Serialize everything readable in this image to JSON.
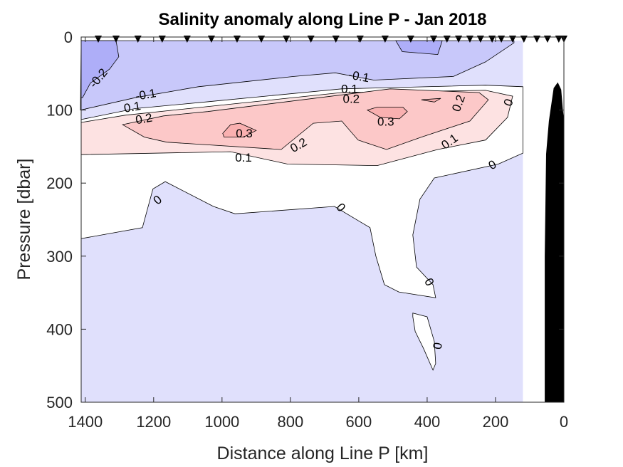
{
  "chart_data": {
    "type": "contour",
    "title": "Salinity anomaly along Line P - Jan 2018",
    "xlabel": "Distance along Line P [km]",
    "ylabel": "Pressure [dbar]",
    "xlim": [
      1412,
      0
    ],
    "ylim": [
      500,
      0
    ],
    "x_reversed": true,
    "y_reversed": true,
    "xticks": [
      1400,
      1200,
      1000,
      800,
      600,
      400,
      200,
      0
    ],
    "yticks": [
      0,
      100,
      200,
      300,
      400,
      500
    ],
    "data_extent_km": [
      1412,
      120
    ],
    "colors": {
      "lt_-0.2": "#aeaef8",
      "-0.2_-0.1": "#c8c8fa",
      "-0.1_0": "#e0e0fc",
      "0_0.1": "#ffffff",
      "0.1_0.2": "#fde2e2",
      "0.2_0.3": "#fcc8c8",
      "gt_0.3": "#f9b0b0",
      "bathymetry": "#000000"
    },
    "filled_regions": [
      {
        "level": "-0.1_0",
        "points": [
          [
            1412,
            5
          ],
          [
            120,
            5
          ],
          [
            120,
            500
          ],
          [
            1412,
            500
          ]
        ]
      },
      {
        "level": "-0.2_-0.1",
        "points": [
          [
            1412,
            5
          ],
          [
            146,
            5
          ],
          [
            146,
            8
          ],
          [
            229,
            34
          ],
          [
            323,
            54
          ],
          [
            556,
            59
          ],
          [
            669,
            49
          ],
          [
            790,
            54
          ],
          [
            1069,
            68
          ],
          [
            1254,
            83
          ],
          [
            1414,
            100
          ]
        ]
      },
      {
        "level": "lt_-0.2",
        "points": [
          [
            1412,
            5
          ],
          [
            1310,
            5
          ],
          [
            1302,
            27
          ],
          [
            1329,
            44
          ],
          [
            1385,
            63
          ],
          [
            1408,
            83
          ],
          [
            1412,
            83
          ]
        ]
      },
      {
        "level": "lt_-0.2",
        "points": [
          [
            492,
            5
          ],
          [
            473,
            20
          ],
          [
            369,
            24
          ],
          [
            356,
            5
          ]
        ]
      },
      {
        "level": "0_0.1",
        "points": [
          [
            1412,
            113
          ],
          [
            1254,
            98
          ],
          [
            1050,
            89
          ],
          [
            650,
            71
          ],
          [
            229,
            66
          ],
          [
            120,
            68
          ],
          [
            120,
            159
          ],
          [
            192,
            174
          ],
          [
            379,
            193
          ],
          [
            421,
            222
          ],
          [
            442,
            271
          ],
          [
            431,
            315
          ],
          [
            383,
            339
          ],
          [
            375,
            357
          ],
          [
            483,
            349
          ],
          [
            525,
            339
          ],
          [
            550,
            300
          ],
          [
            567,
            261
          ],
          [
            671,
            232
          ],
          [
            962,
            242
          ],
          [
            1025,
            232
          ],
          [
            1166,
            198
          ],
          [
            1202,
            208
          ],
          [
            1233,
            261
          ],
          [
            1412,
            276
          ]
        ]
      },
      {
        "level": "0_0.1",
        "points": [
          [
            442,
            378
          ],
          [
            400,
            383
          ],
          [
            379,
            417
          ],
          [
            375,
            447
          ],
          [
            383,
            456
          ],
          [
            410,
            427
          ],
          [
            435,
            403
          ],
          [
            442,
            383
          ]
        ]
      },
      {
        "level": "0.1_0.2",
        "points": [
          [
            1412,
            117
          ],
          [
            1283,
            107
          ],
          [
            650,
            76
          ],
          [
            229,
            73
          ],
          [
            150,
            81
          ],
          [
            165,
            110
          ],
          [
            229,
            141
          ],
          [
            369,
            154
          ],
          [
            546,
            176
          ],
          [
            808,
            174
          ],
          [
            975,
            157
          ],
          [
            1412,
            161
          ]
        ]
      },
      {
        "level": "0.2_0.3",
        "points": [
          [
            1291,
            120
          ],
          [
            1171,
            108
          ],
          [
            1042,
            102
          ],
          [
            508,
            71
          ],
          [
            248,
            76
          ],
          [
            221,
            86
          ],
          [
            275,
            115
          ],
          [
            417,
            137
          ],
          [
            519,
            154
          ],
          [
            602,
            141
          ],
          [
            650,
            115
          ],
          [
            733,
            118
          ],
          [
            827,
            154
          ],
          [
            1162,
            144
          ],
          [
            1227,
            137
          ]
        ]
      },
      {
        "level": "gt_0.3",
        "points": [
          [
            998,
            132
          ],
          [
            975,
            120
          ],
          [
            948,
            118
          ],
          [
            900,
            128
          ],
          [
            937,
            137
          ],
          [
            994,
            137
          ]
        ]
      },
      {
        "level": "gt_0.3",
        "points": [
          [
            575,
            100
          ],
          [
            546,
            96
          ],
          [
            471,
            96
          ],
          [
            458,
            102
          ],
          [
            481,
            112
          ],
          [
            537,
            110
          ]
        ]
      },
      {
        "level": "gt_0.3",
        "points": [
          [
            417,
            86
          ],
          [
            360,
            84
          ],
          [
            379,
            89
          ]
        ]
      }
    ],
    "bathymetry": [
      [
        56,
        500
      ],
      [
        56,
        300
      ],
      [
        52,
        160
      ],
      [
        44,
        115
      ],
      [
        30,
        70
      ],
      [
        18,
        62
      ],
      [
        8,
        72
      ],
      [
        3,
        100
      ],
      [
        0,
        112
      ],
      [
        0,
        500
      ]
    ],
    "contour_labels": [
      {
        "text": "-0.2",
        "x": 1360,
        "p": 57,
        "angle": -50
      },
      {
        "text": "-0.1",
        "x": 1223,
        "p": 80,
        "angle": -10
      },
      {
        "text": "0.1",
        "x": 1262,
        "p": 97,
        "angle": -10
      },
      {
        "text": "0.2",
        "x": 1228,
        "p": 113,
        "angle": -10
      },
      {
        "text": "-0.1",
        "x": 600,
        "p": 55,
        "angle": 10
      },
      {
        "text": "0.1",
        "x": 627,
        "p": 72,
        "angle": 0
      },
      {
        "text": "0.2",
        "x": 622,
        "p": 86,
        "angle": 0
      },
      {
        "text": "0.3",
        "x": 935,
        "p": 133,
        "angle": 0
      },
      {
        "text": "0.3",
        "x": 521,
        "p": 117,
        "angle": 0
      },
      {
        "text": "0.2",
        "x": 775,
        "p": 149,
        "angle": -30
      },
      {
        "text": "0.1",
        "x": 937,
        "p": 166,
        "angle": 0
      },
      {
        "text": "0.2",
        "x": 306,
        "p": 91,
        "angle": -70
      },
      {
        "text": "0.1",
        "x": 333,
        "p": 144,
        "angle": -35
      },
      {
        "text": "0",
        "x": 160,
        "p": 90,
        "angle": -70
      },
      {
        "text": "0",
        "x": 208,
        "p": 176,
        "angle": -30
      },
      {
        "text": "0",
        "x": 1187,
        "p": 224,
        "angle": -40
      },
      {
        "text": "0",
        "x": 654,
        "p": 234,
        "angle": 50
      },
      {
        "text": "0",
        "x": 396,
        "p": 336,
        "angle": 60
      },
      {
        "text": "0",
        "x": 367,
        "p": 423,
        "angle": -80
      }
    ],
    "station_markers_km": [
      1362,
      1310,
      1246,
      1175,
      1102,
      1031,
      956,
      885,
      812,
      740,
      667,
      596,
      523,
      448,
      381,
      342,
      308,
      275,
      244,
      210,
      183,
      150,
      117,
      79,
      48,
      15,
      0
    ]
  }
}
